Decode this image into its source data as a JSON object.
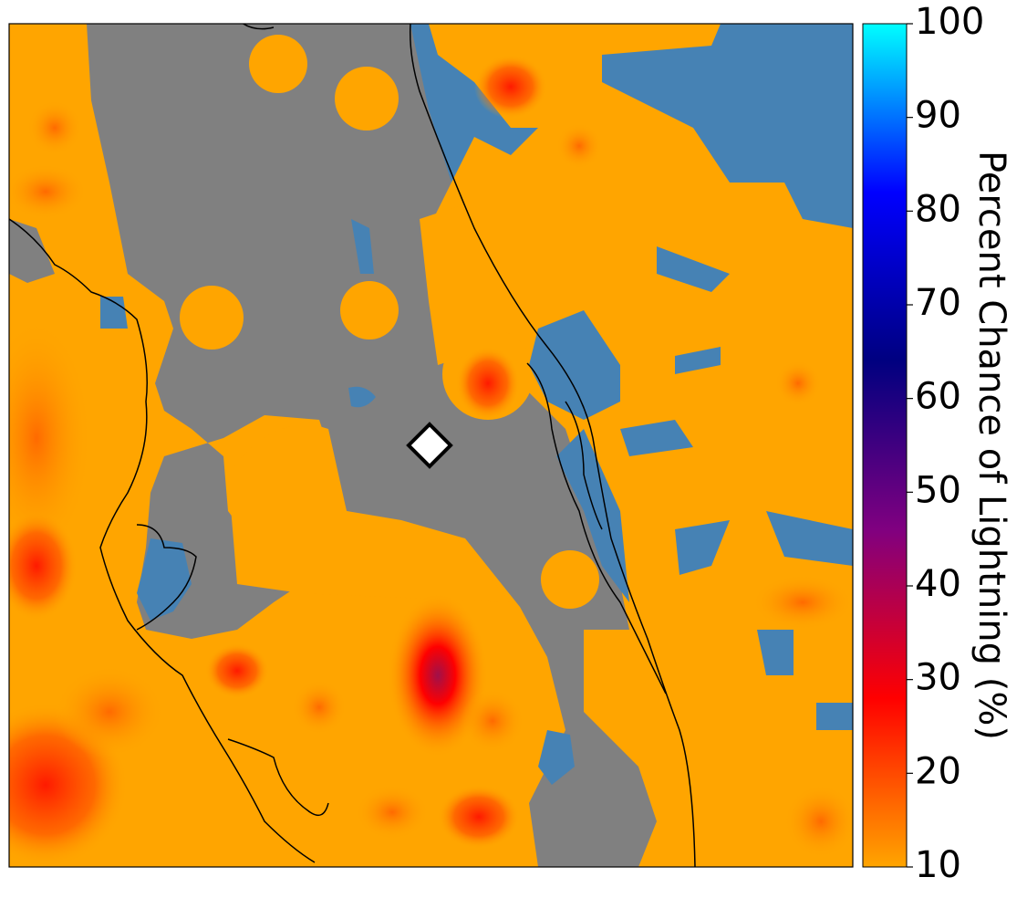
{
  "colorbar": {
    "label": "Percent Chance of Lightning (%)",
    "lim": [
      10,
      100
    ],
    "ticks": [
      10,
      20,
      30,
      40,
      50,
      60,
      70,
      80,
      90,
      100
    ],
    "colors": [
      "#ffa500",
      "#ff0000",
      "#800080",
      "#000080",
      "#0000ff",
      "#00ffff"
    ]
  }
}
